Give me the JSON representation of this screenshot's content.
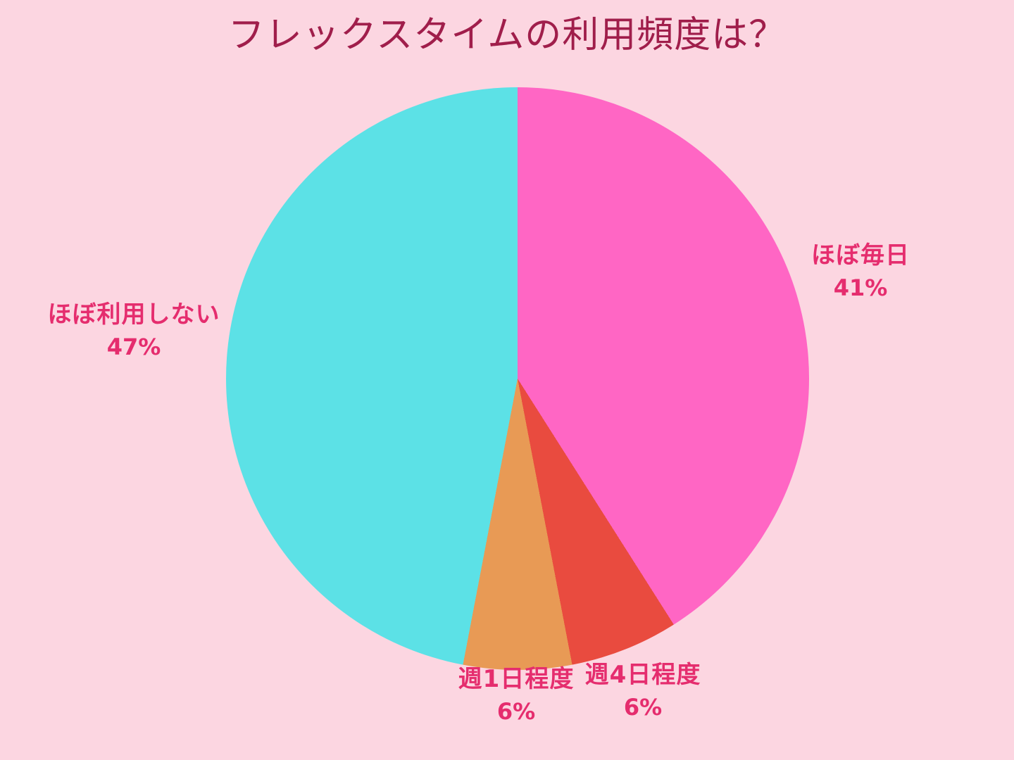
{
  "page": {
    "background_color": "#fcd6e1"
  },
  "title": {
    "text": "フレックスタイムの利用頻度は？",
    "color": "#a01e4b"
  },
  "chart_data": {
    "type": "pie",
    "title": "フレックスタイムの利用頻度は？",
    "start_angle_deg": 0,
    "direction": "clockwise",
    "legend": "none",
    "label_color": "#e52d6e",
    "total_pct": 100,
    "slices": [
      {
        "label": "ほぼ毎日",
        "value_pct": 41,
        "pct_text": "41%",
        "color": "#ff66c4",
        "label_position": "right"
      },
      {
        "label": "週4日程度",
        "value_pct": 6,
        "pct_text": "6%",
        "color": "#e94b3f",
        "label_position": "bottom-right"
      },
      {
        "label": "週1日程度",
        "value_pct": 6,
        "pct_text": "6%",
        "color": "#e89a55",
        "label_position": "bottom-left"
      },
      {
        "label": "ほぼ利用しない",
        "value_pct": 47,
        "pct_text": "47%",
        "color": "#5ce1e6",
        "label_position": "left"
      }
    ]
  }
}
